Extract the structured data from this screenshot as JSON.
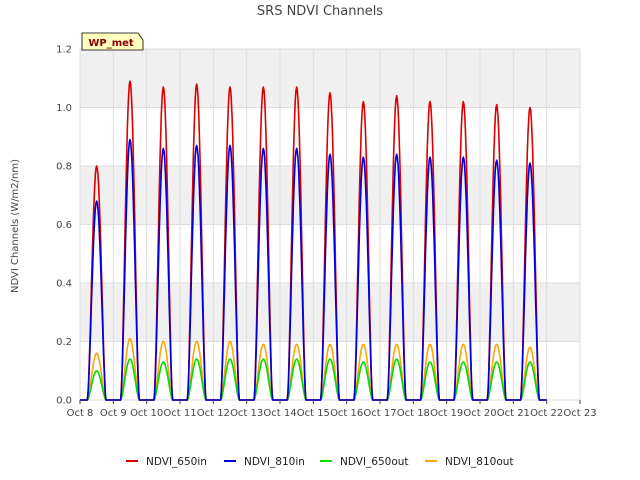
{
  "chart_data": {
    "type": "line",
    "title": "SRS NDVI Channels",
    "ylabel": "NDVI Channels (W/m2/nm)",
    "xlabel": "",
    "badge": "WP_met",
    "ylim": [
      0.0,
      1.2
    ],
    "xlim": [
      0,
      15
    ],
    "yticks": [
      0.0,
      0.2,
      0.4,
      0.6,
      0.8,
      1.0,
      1.2
    ],
    "ytick_labels": [
      "0.0",
      "0.2",
      "0.4",
      "0.6",
      "0.8",
      "1.0",
      "1.2"
    ],
    "xticks": [
      0,
      1,
      2,
      3,
      4,
      5,
      6,
      7,
      8,
      9,
      10,
      11,
      12,
      13,
      14,
      15
    ],
    "xtick_labels": [
      "Oct 8",
      "Oct 9",
      "Oct 10",
      "Oct 11",
      "Oct 12",
      "Oct 13",
      "Oct 14",
      "Oct 15",
      "Oct 16",
      "Oct 17",
      "Oct 18",
      "Oct 19",
      "Oct 20",
      "Oct 21",
      "Oct 22",
      "Oct 23"
    ],
    "background_bands": true,
    "grid": true,
    "legend_position": "bottom",
    "daily_peak_x_offset": 0.5,
    "series": [
      {
        "name": "NDVI_650in",
        "color": "#dd0000",
        "daily_peaks": [
          0.8,
          1.09,
          1.07,
          1.08,
          1.07,
          1.07,
          1.07,
          1.05,
          1.02,
          1.04,
          1.02,
          1.02,
          1.01,
          1.0
        ]
      },
      {
        "name": "NDVI_810in",
        "color": "#0000dd",
        "daily_peaks": [
          0.68,
          0.89,
          0.86,
          0.87,
          0.87,
          0.86,
          0.86,
          0.84,
          0.83,
          0.84,
          0.83,
          0.83,
          0.82,
          0.81
        ]
      },
      {
        "name": "NDVI_650out",
        "color": "#00dd00",
        "daily_peaks": [
          0.1,
          0.14,
          0.13,
          0.14,
          0.14,
          0.14,
          0.14,
          0.14,
          0.13,
          0.14,
          0.13,
          0.13,
          0.13,
          0.13
        ]
      },
      {
        "name": "NDVI_810out",
        "color": "#ffa500",
        "daily_peaks": [
          0.16,
          0.21,
          0.2,
          0.2,
          0.2,
          0.19,
          0.19,
          0.19,
          0.19,
          0.19,
          0.19,
          0.19,
          0.19,
          0.18
        ]
      }
    ]
  }
}
